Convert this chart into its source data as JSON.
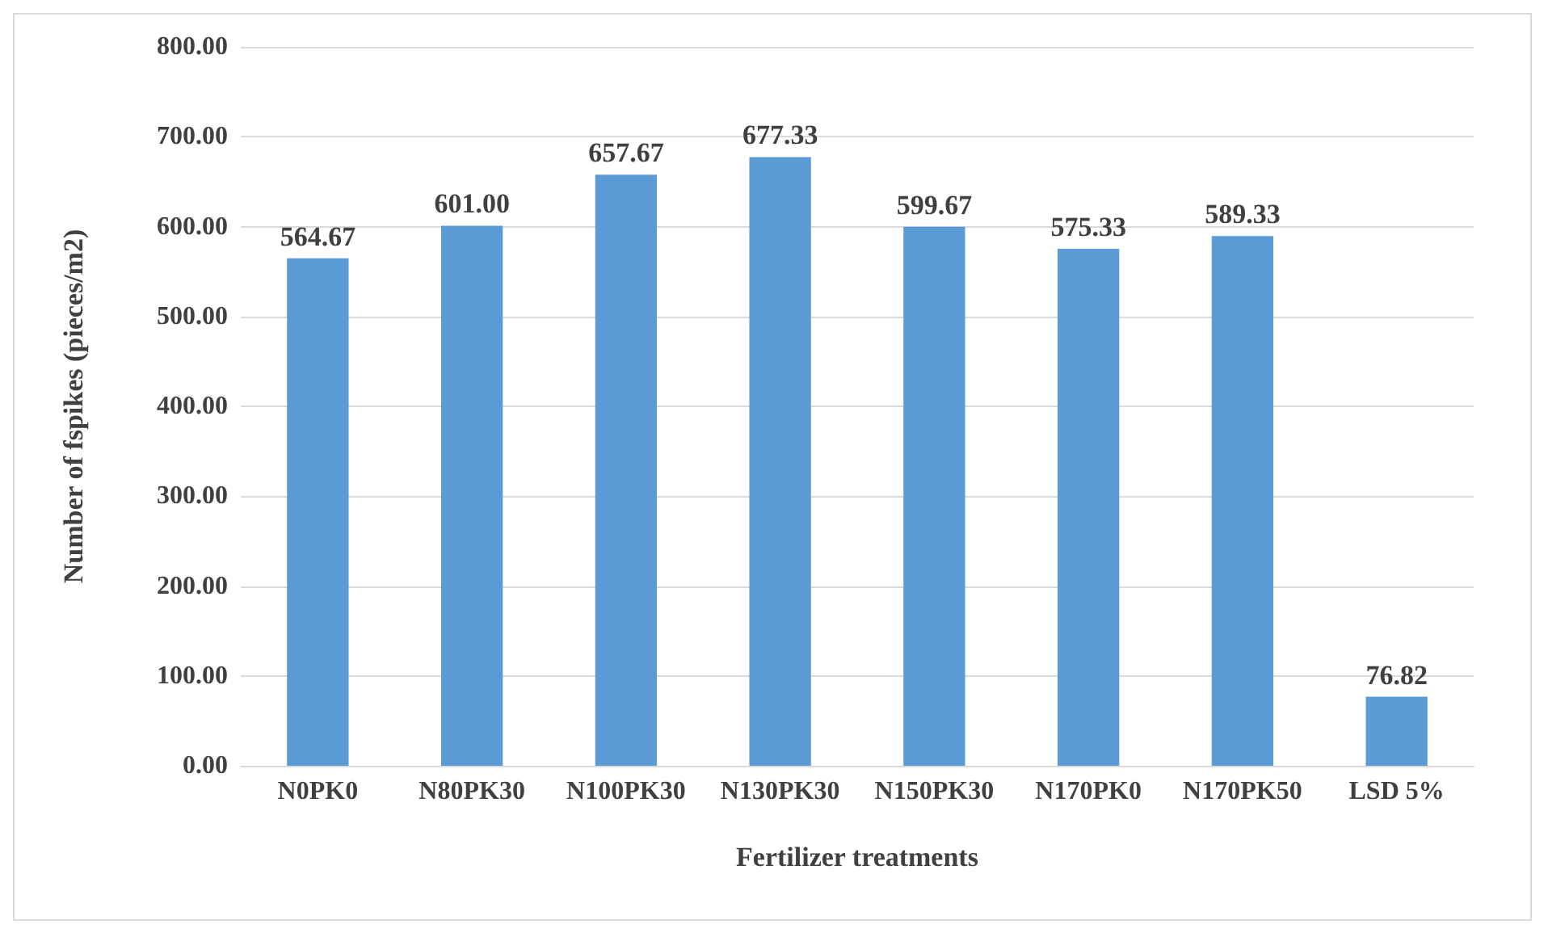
{
  "chart_data": {
    "type": "bar",
    "xlabel": "Fertilizer treatments",
    "ylabel": "Number of fspikes (pieces/m2)",
    "categories": [
      "N0PK0",
      "N80PK30",
      "N100PK30",
      "N130PK30",
      "N150PK30",
      "N170PK0",
      "N170PK50",
      "LSD 5%"
    ],
    "values": [
      564.67,
      601.0,
      657.67,
      677.33,
      599.67,
      575.33,
      589.33,
      76.82
    ],
    "color": "#5b9bd5",
    "value_labels": [
      "564.67",
      "601.00",
      "657.67",
      "677.33",
      "599.67",
      "575.33",
      "589.33",
      "76.82"
    ],
    "ylim": [
      0,
      800
    ],
    "yticks": [
      {
        "value": 0,
        "label": "0.00"
      },
      {
        "value": 100,
        "label": "100.00"
      },
      {
        "value": 200,
        "label": "200.00"
      },
      {
        "value": 300,
        "label": "300.00"
      },
      {
        "value": 400,
        "label": "400.00"
      },
      {
        "value": 500,
        "label": "500.00"
      },
      {
        "value": 600,
        "label": "600.00"
      },
      {
        "value": 700,
        "label": "700.00"
      },
      {
        "value": 800,
        "label": "800.00"
      }
    ],
    "grid": "y"
  }
}
